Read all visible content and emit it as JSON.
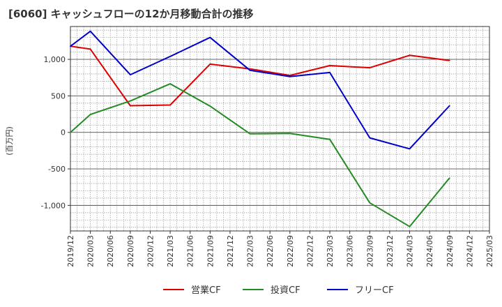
{
  "chart_data": {
    "type": "line",
    "title": "[6060]  キャッシュフローの12か月移動合計の推移",
    "ylabel": "(百万円)",
    "xlabel": "",
    "ylim": [
      -1350,
      1450
    ],
    "yticks": [
      1000,
      500,
      0,
      -500,
      -1000
    ],
    "ytick_labels": [
      "1,000",
      "500",
      "0",
      "-500",
      "-1,000"
    ],
    "x": [
      "2019/12",
      "2020/03",
      "2020/06",
      "2020/09",
      "2020/12",
      "2021/03",
      "2021/06",
      "2021/09",
      "2021/12",
      "2022/03",
      "2022/06",
      "2022/09",
      "2022/12",
      "2023/03",
      "2023/06",
      "2023/09",
      "2023/12",
      "2024/03",
      "2024/06",
      "2024/09",
      "2024/12",
      "2025/03"
    ],
    "grid": true,
    "legend_position": "bottom",
    "series": [
      {
        "name": "営業CF",
        "color": "#dd0000",
        "values": [
          1180,
          1140,
          null,
          365,
          null,
          375,
          null,
          935,
          null,
          870,
          null,
          780,
          null,
          915,
          null,
          885,
          null,
          1055,
          null,
          985,
          null,
          null
        ]
      },
      {
        "name": "投資CF",
        "color": "#228b22",
        "values": [
          0,
          245,
          null,
          430,
          null,
          665,
          null,
          360,
          null,
          -20,
          null,
          -15,
          null,
          -95,
          null,
          -965,
          null,
          -1290,
          null,
          -625,
          null,
          null
        ]
      },
      {
        "name": "フリーCF",
        "color": "#0000cc",
        "values": [
          1180,
          1385,
          null,
          790,
          null,
          1040,
          null,
          1300,
          null,
          850,
          null,
          765,
          null,
          820,
          null,
          -75,
          null,
          -225,
          null,
          365,
          null,
          null
        ]
      }
    ]
  }
}
